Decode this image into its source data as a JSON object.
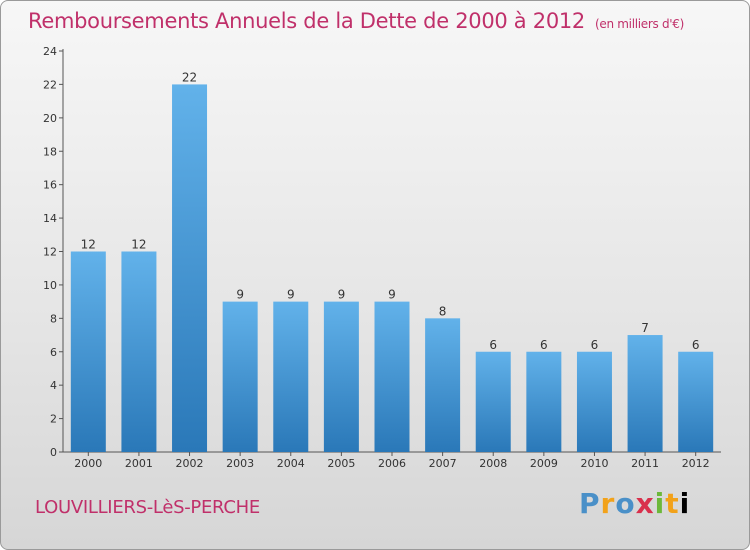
{
  "header": {
    "title": "Remboursements Annuels de la Dette de 2000 à 2012",
    "subtitle": "(en milliers d'€)"
  },
  "footer": {
    "commune": "LOUVILLIERS-LèS-PERCHE",
    "logo_letters": [
      "P",
      "r",
      "o",
      "x",
      "i",
      "t",
      "i"
    ]
  },
  "colors": {
    "accent": "#c0306a",
    "bar_top": "#62b2ea",
    "bar_bottom": "#2a78b8"
  },
  "chart_data": {
    "type": "bar",
    "title": "Remboursements Annuels de la Dette de 2000 à 2012",
    "categories": [
      "2000",
      "2001",
      "2002",
      "2003",
      "2004",
      "2005",
      "2006",
      "2007",
      "2008",
      "2009",
      "2010",
      "2011",
      "2012"
    ],
    "values": [
      12,
      12,
      22,
      9,
      9,
      9,
      9,
      8,
      6,
      6,
      6,
      7,
      6
    ],
    "ylim": [
      0,
      24
    ],
    "yticks": [
      0,
      2,
      4,
      6,
      8,
      10,
      12,
      14,
      16,
      18,
      20,
      22,
      24
    ],
    "grid": false,
    "data_labels": true
  }
}
